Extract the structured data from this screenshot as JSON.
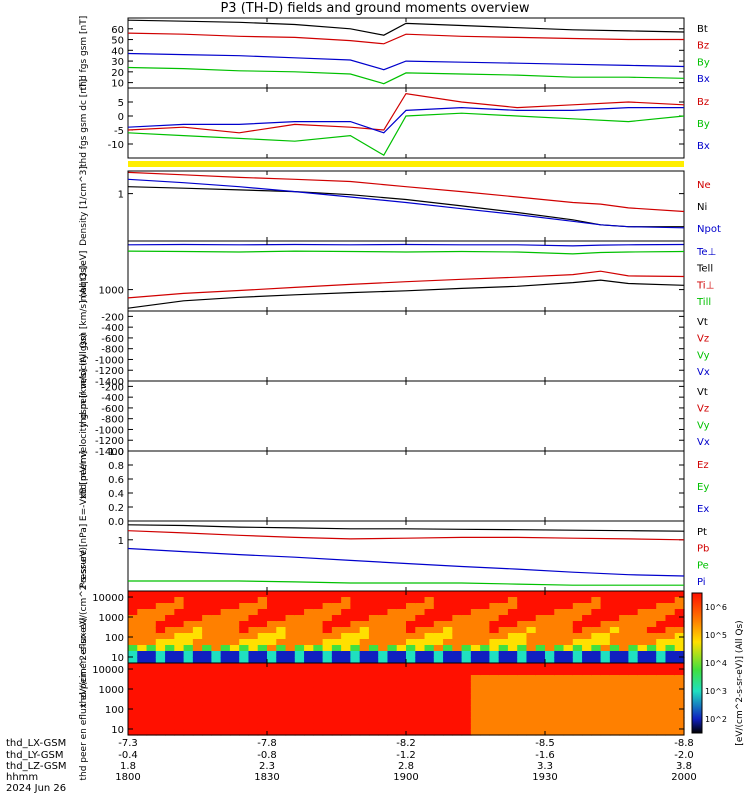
{
  "title": "P3 (TH-D) fields and ground moments overview",
  "date_label": "2024 Jun 26",
  "footer": {
    "rows": [
      {
        "label": "thd_LX-GSM",
        "values": [
          "-7.3",
          "-7.8",
          "-8.2",
          "-8.5",
          "-8.8"
        ]
      },
      {
        "label": "thd_LY-GSM",
        "values": [
          "-0.4",
          "-0.8",
          "-1.2",
          "-1.6",
          "-2.0"
        ]
      },
      {
        "label": "thd_LZ-GSM",
        "values": [
          "1.8",
          "2.3",
          "2.8",
          "3.3",
          "3.8"
        ]
      },
      {
        "label": "hhmm",
        "values": [
          "1800",
          "1830",
          "1900",
          "1930",
          "2000"
        ]
      }
    ]
  },
  "colorbar": {
    "ticks": [
      "10^2",
      "10^3",
      "10^4",
      "10^5",
      "10^6"
    ],
    "label": "[eV/(cm^2-s-sr-eV)] (All Qs)"
  },
  "chart_data": [
    {
      "type": "line",
      "ylabel": "thd fgs gsm [nT]",
      "yticks": [
        "10",
        "20",
        "30",
        "40",
        "50",
        "60"
      ],
      "ylim": [
        5,
        70
      ],
      "x": [
        0,
        0.1,
        0.2,
        0.3,
        0.4,
        0.46,
        0.5,
        0.6,
        0.7,
        0.8,
        0.9,
        1.0
      ],
      "series": [
        {
          "name": "Bt",
          "color": "#000000",
          "values": [
            68,
            67,
            66,
            64,
            60,
            54,
            65,
            63,
            61,
            59,
            58,
            57
          ]
        },
        {
          "name": "Bz",
          "color": "#d00000",
          "values": [
            56,
            55,
            53,
            52,
            49,
            46,
            55,
            53,
            52,
            51,
            50,
            50
          ]
        },
        {
          "name": "By",
          "color": "#00c000",
          "values": [
            24,
            23,
            21,
            20,
            18,
            9,
            19,
            18,
            17,
            15,
            15,
            14
          ]
        },
        {
          "name": "Bx",
          "color": "#0000cc",
          "values": [
            37,
            36,
            35,
            33,
            31,
            22,
            30,
            29,
            28,
            27,
            26,
            25
          ]
        }
      ]
    },
    {
      "type": "line",
      "ylabel": "thd fgs gsm dc [nT]",
      "yticks": [
        "5",
        "0",
        "-5",
        "-10"
      ],
      "ylim": [
        -15,
        10
      ],
      "x": [
        0,
        0.1,
        0.2,
        0.3,
        0.4,
        0.46,
        0.5,
        0.6,
        0.7,
        0.8,
        0.9,
        1.0
      ],
      "series": [
        {
          "name": "Bz",
          "color": "#d00000",
          "values": [
            -5,
            -4,
            -6,
            -3,
            -4,
            -5,
            8,
            5,
            3,
            4,
            5,
            4
          ]
        },
        {
          "name": "By",
          "color": "#00c000",
          "values": [
            -6,
            -7,
            -8,
            -9,
            -7,
            -14,
            0,
            1,
            0,
            -1,
            -2,
            0
          ]
        },
        {
          "name": "Bx",
          "color": "#0000cc",
          "values": [
            -4,
            -3,
            -3,
            -2,
            -2,
            -6,
            2,
            3,
            2,
            2,
            3,
            3
          ]
        }
      ]
    },
    {
      "type": "line",
      "ylabel": "Density [1/cm^3]",
      "yticks": [
        "1"
      ],
      "ylim": [
        0.1,
        3
      ],
      "scale": "log",
      "x": [
        0,
        0.1,
        0.2,
        0.3,
        0.4,
        0.5,
        0.6,
        0.7,
        0.8,
        0.85,
        0.9,
        1.0
      ],
      "series": [
        {
          "name": "Ne",
          "color": "#d00000",
          "values": [
            2.8,
            2.5,
            2.2,
            2.0,
            1.8,
            1.4,
            1.1,
            0.85,
            0.65,
            0.6,
            0.5,
            0.42
          ]
        },
        {
          "name": "Ni",
          "color": "#000000",
          "values": [
            1.4,
            1.3,
            1.2,
            1.1,
            0.95,
            0.75,
            0.55,
            0.4,
            0.28,
            0.22,
            0.2,
            0.2
          ]
        },
        {
          "name": "Npot",
          "color": "#0000cc",
          "values": [
            2.0,
            1.7,
            1.4,
            1.1,
            0.85,
            0.65,
            0.48,
            0.36,
            0.26,
            0.22,
            0.2,
            0.19
          ]
        }
      ]
    },
    {
      "type": "line",
      "ylabel": "moqt3 [eV]",
      "yticks": [
        "1000"
      ],
      "ylim": [
        400,
        8000
      ],
      "scale": "log",
      "x": [
        0,
        0.1,
        0.2,
        0.3,
        0.4,
        0.5,
        0.6,
        0.7,
        0.8,
        0.85,
        0.9,
        1.0
      ],
      "series": [
        {
          "name": "Te⊥",
          "color": "#0000cc",
          "values": [
            6800,
            6900,
            6800,
            6900,
            6800,
            6900,
            6800,
            6800,
            6500,
            6700,
            6800,
            6900
          ]
        },
        {
          "name": "Tell",
          "color": "#000000",
          "values": [
            450,
            620,
            720,
            800,
            880,
            950,
            1050,
            1150,
            1350,
            1500,
            1300,
            1200
          ]
        },
        {
          "name": "Ti⊥",
          "color": "#d00000",
          "values": [
            700,
            850,
            960,
            1100,
            1250,
            1400,
            1550,
            1700,
            1900,
            2200,
            1800,
            1750
          ]
        },
        {
          "name": "Till",
          "color": "#00c000",
          "values": [
            5200,
            5100,
            5000,
            5200,
            5100,
            5000,
            5100,
            5000,
            4600,
            4900,
            5000,
            5100
          ]
        }
      ]
    },
    {
      "type": "line",
      "ylabel": "thd peir velocity gsm [km/s] (All Qs)",
      "yticks": [
        "-200",
        "-400",
        "-600",
        "-800",
        "-1000",
        "-1200",
        "-1400"
      ],
      "ylim": [
        -1400,
        -100
      ],
      "legend": [
        "Vt",
        "Vz",
        "Vy",
        "Vx"
      ],
      "series": []
    },
    {
      "type": "line",
      "ylabel": "thd peer velocity gsm [km/s] (All Qs)",
      "yticks": [
        "-200",
        "-400",
        "-600",
        "-800",
        "-1000",
        "-1200",
        "-1400"
      ],
      "ylim": [
        -1400,
        -100
      ],
      "legend": [
        "Vt",
        "Vz",
        "Vy",
        "Vx"
      ],
      "series": []
    },
    {
      "type": "line",
      "ylabel": "E=-VxB [mV/m]",
      "yticks": [
        "1.0",
        "0.8",
        "0.6",
        "0.4",
        "0.2",
        "0.0"
      ],
      "ylim": [
        0,
        1
      ],
      "legend": [
        "Ez",
        "Ey",
        "Ex"
      ],
      "series": []
    },
    {
      "type": "line",
      "ylabel": "Pressure [nPa]",
      "yticks": [
        "1"
      ],
      "ylim": [
        0.05,
        3
      ],
      "scale": "log",
      "x": [
        0,
        0.1,
        0.2,
        0.3,
        0.4,
        0.5,
        0.6,
        0.7,
        0.8,
        0.9,
        1.0
      ],
      "series": [
        {
          "name": "Pt",
          "color": "#000000",
          "values": [
            2.4,
            2.3,
            2.1,
            2.0,
            1.9,
            1.9,
            1.85,
            1.8,
            1.75,
            1.7,
            1.65
          ]
        },
        {
          "name": "Pb",
          "color": "#d00000",
          "values": [
            1.7,
            1.5,
            1.3,
            1.15,
            1.05,
            1.1,
            1.15,
            1.15,
            1.1,
            1.05,
            1.0
          ]
        },
        {
          "name": "Pe",
          "color": "#00c000",
          "values": [
            0.09,
            0.09,
            0.09,
            0.085,
            0.08,
            0.08,
            0.08,
            0.075,
            0.07,
            0.07,
            0.07
          ]
        },
        {
          "name": "Pi",
          "color": "#0000cc",
          "values": [
            0.6,
            0.5,
            0.42,
            0.36,
            0.3,
            0.25,
            0.21,
            0.18,
            0.15,
            0.13,
            0.12
          ]
        }
      ]
    },
    {
      "type": "heatmap",
      "ylabel": "thd peir en eflux eV/(cm^2-s-sr-eV)",
      "yticks": [
        "10000",
        "1000",
        "100",
        "10"
      ],
      "ylim": [
        5,
        20000
      ],
      "scale": "log"
    },
    {
      "type": "heatmap",
      "ylabel": "thd peer en eflux eV/(cm^2-s-sr-eV)",
      "yticks": [
        "10000",
        "1000",
        "100",
        "10"
      ],
      "ylim": [
        5,
        20000
      ],
      "scale": "log"
    }
  ]
}
